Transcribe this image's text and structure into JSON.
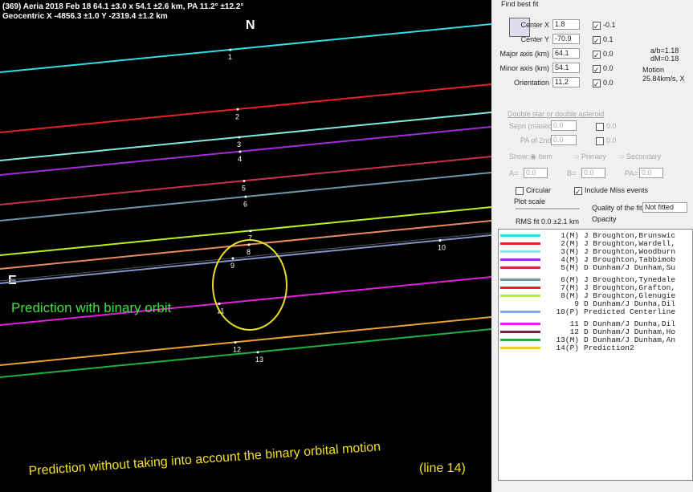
{
  "plot": {
    "header": [
      "(369) Aeria 2018 Feb 18  64.1 ±3.0 x 54.1 ±2.6 km, PA 11.2° ±12.2°",
      "Geocentric X -4856.3 ±1.0 Y -2319.4 ±1.2 km"
    ],
    "north": "N",
    "east": "E",
    "chords": [
      {
        "label": "1",
        "color": "#33dde8"
      },
      {
        "label": "2",
        "color": "#e8202a"
      },
      {
        "label": "3",
        "color": "#7fe8e0"
      },
      {
        "label": "4",
        "color": "#a22ad8"
      },
      {
        "label": "5",
        "color": "#c8304a"
      },
      {
        "label": "6",
        "color": "#6a96a8"
      },
      {
        "label": "7",
        "color": "#b8f020"
      },
      {
        "label": "8",
        "color": "#e88a60"
      },
      {
        "label": "9",
        "color": "#555555"
      },
      {
        "label": "10",
        "color": "#7f94c8"
      },
      {
        "label": "11",
        "color": "#e020d8"
      },
      {
        "label": "12",
        "color": "#e8a030"
      },
      {
        "label": "13",
        "color": "#20b040"
      }
    ],
    "ellipse_color": "#e8e020",
    "annotation_binary": "Prediction with binary orbit",
    "annotation_nobinary": [
      "Prediction without taking into account the binary orbital motion",
      "(line 14)"
    ]
  },
  "panel": {
    "find_best_fit": "Find best fit",
    "params": [
      {
        "label": "Center X",
        "value": "1.8",
        "step": "-0.1"
      },
      {
        "label": "Center Y",
        "value": "-70.9",
        "step": "0.1"
      },
      {
        "label": "Major axis (km)",
        "value": "64.1",
        "step": "0.0"
      },
      {
        "label": "Minor axis (km)",
        "value": "54.1",
        "step": "0.0"
      },
      {
        "label": "Orientation",
        "value": "11.2",
        "step": "0.0"
      }
    ],
    "side": [
      "a/b=1.18",
      "dM=0.18",
      "Motion",
      "25.84km/s, X"
    ],
    "double": "Double star  or  double asteroid",
    "sepn": {
      "label": "Sepn (masec)",
      "value": "0.0",
      "step": "0.0"
    },
    "pa2": {
      "label": "PA of 2nd",
      "value": "0.0",
      "step": "0.0"
    },
    "show": [
      "Show:",
      "Item",
      "Primary",
      "Secondary"
    ],
    "abpa": [
      {
        "label": "A=",
        "value": "0.0"
      },
      {
        "label": "B=",
        "value": "0.0"
      },
      {
        "label": "PA=",
        "value": "0.0"
      }
    ],
    "circular": "Circular",
    "include_miss": "Include Miss events",
    "plot_scale": "Plot scale",
    "quality": "Quality of the fit",
    "quality_value": "Not fitted",
    "opacity": "Opacity",
    "rms": "RMS fit 0.0 ±2.1 km"
  },
  "list": [
    {
      "id": "1(M)",
      "text": "J Broughton,Brunswic",
      "color": "#33dde8"
    },
    {
      "id": "2(M)",
      "text": "J Broughton,Wardell,",
      "color": "#e8202a"
    },
    {
      "id": "3(M)",
      "text": "J Broughton,Woodburn",
      "color": "#7fe8e0"
    },
    {
      "id": "4(M)",
      "text": "J Broughton,Tabbimob",
      "color": "#a22ad8"
    },
    {
      "id": "5(M)",
      "text": "D Dunham/J Dunham,Su",
      "color": "#c8304a"
    },
    {
      "id": "6(M)",
      "text": "J Broughton,Tynedale",
      "color": "#6a96a8"
    },
    {
      "id": "7(M)",
      "text": "J Broughton,Grafton,",
      "color": "#e8202a"
    },
    {
      "id": "8(M)",
      "text": "J Broughton,Glenugie",
      "color": "#b8f020"
    },
    {
      "id": "9",
      "text": "D Dunham/J Dunha,Dil",
      "color": "#ffffff"
    },
    {
      "id": "10(P)",
      "text": "Predicted Centerline",
      "color": "#7fa8e8"
    },
    {
      "id": "11",
      "text": "D Dunham/J Dunha,Dil",
      "color": "#e020d8"
    },
    {
      "id": "12",
      "text": "D Dunham/J Dunham,Ho",
      "color": "#802040"
    },
    {
      "id": "13(M)",
      "text": "D Dunham/J Dunham,An",
      "color": "#20b040"
    },
    {
      "id": "14(P)",
      "text": "Prediction2",
      "color": "#e8d020"
    }
  ]
}
